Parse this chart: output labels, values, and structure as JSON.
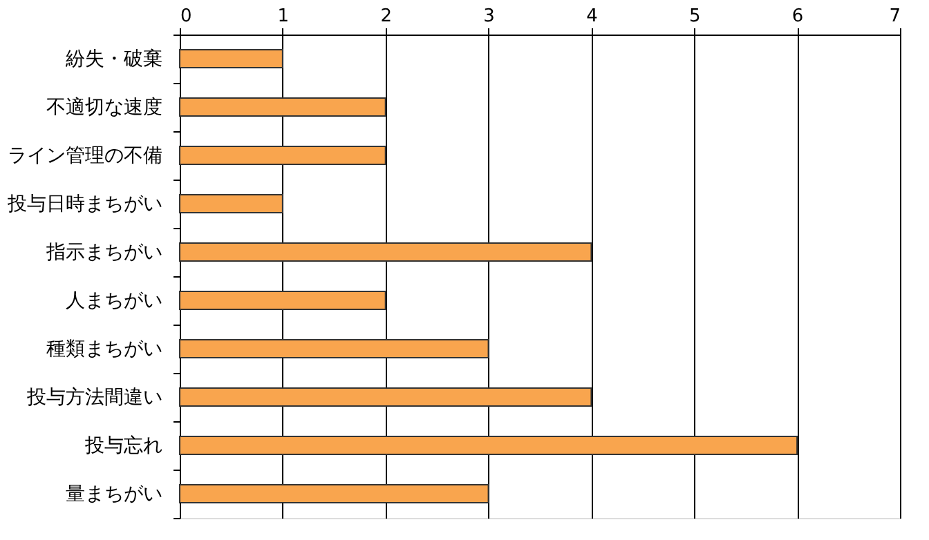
{
  "chart_data": {
    "type": "bar",
    "orientation": "horizontal",
    "categories": [
      "紛失・破棄",
      "不適切な速度",
      "ライン管理の不備",
      "投与日時まちがい",
      "指示まちがい",
      "人まちがい",
      "種類まちがい",
      "投与方法間違い",
      "投与忘れ",
      "量まちがい"
    ],
    "values": [
      1,
      2,
      2,
      1,
      4,
      2,
      3,
      4,
      6,
      3
    ],
    "color": "#f9a54e",
    "xlim": [
      0,
      7
    ],
    "xticks": [
      0,
      1,
      2,
      3,
      4,
      5,
      6,
      7
    ],
    "grid": "x"
  }
}
